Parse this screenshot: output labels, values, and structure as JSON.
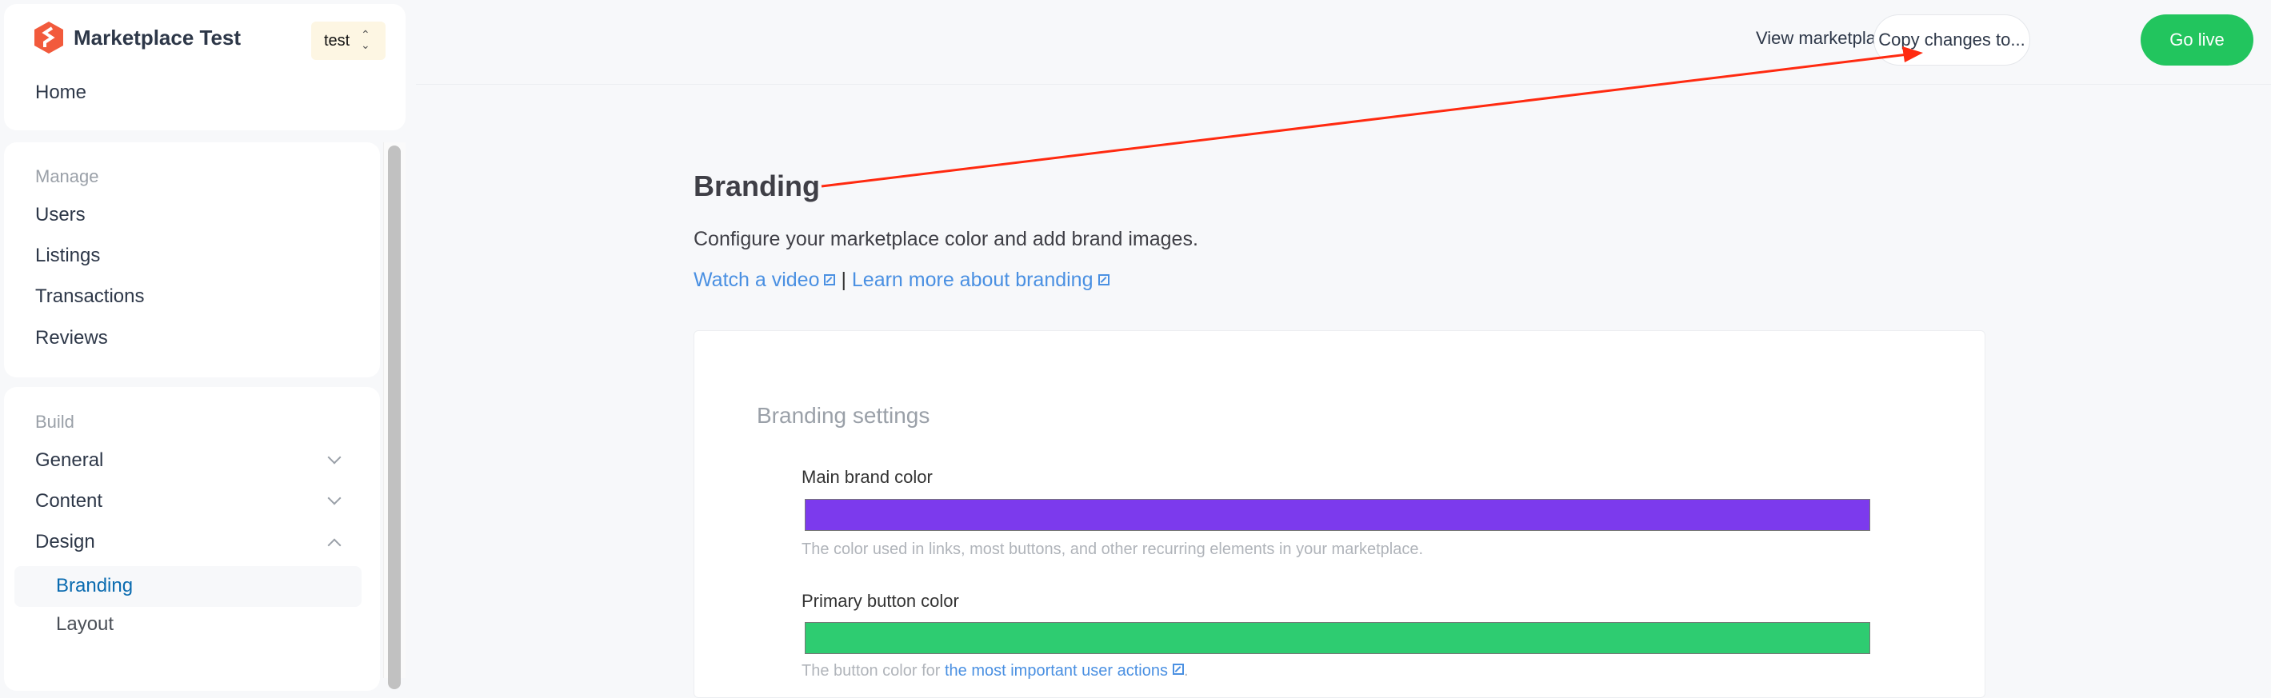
{
  "sidebar": {
    "app_title": "Marketplace Test",
    "environment": "test",
    "home": "Home",
    "manage": {
      "heading": "Manage",
      "items": [
        "Users",
        "Listings",
        "Transactions",
        "Reviews"
      ]
    },
    "build": {
      "heading": "Build",
      "items": [
        {
          "label": "General",
          "expanded": false
        },
        {
          "label": "Content",
          "expanded": false
        },
        {
          "label": "Design",
          "expanded": true
        }
      ],
      "design_children": [
        {
          "label": "Branding",
          "active": true
        },
        {
          "label": "Layout",
          "active": false
        }
      ]
    }
  },
  "topbar": {
    "view_marketplace": "View marketplace",
    "copy_changes": "Copy changes to...",
    "go_live": "Go live"
  },
  "main": {
    "title": "Branding",
    "description": "Configure your marketplace color and add brand images.",
    "link_video": "Watch a video",
    "separator": "|",
    "link_learn": "Learn more about branding",
    "settings": {
      "heading": "Branding settings",
      "main_color": {
        "label": "Main brand color",
        "value": "#7c3aed",
        "help": "The color used in links, most buttons, and other recurring elements in your marketplace."
      },
      "primary_button_color": {
        "label": "Primary button color",
        "value": "#2ecc71",
        "help_prefix": "The button color for ",
        "help_link": "the most important user actions",
        "help_suffix": "."
      }
    }
  },
  "colors": {
    "accent_link": "#4a90e2",
    "go_live": "#22c55e",
    "logo": "#f25a3c",
    "active_nav": "#0a6bb0",
    "annotation_arrow": "#ff2a10"
  }
}
